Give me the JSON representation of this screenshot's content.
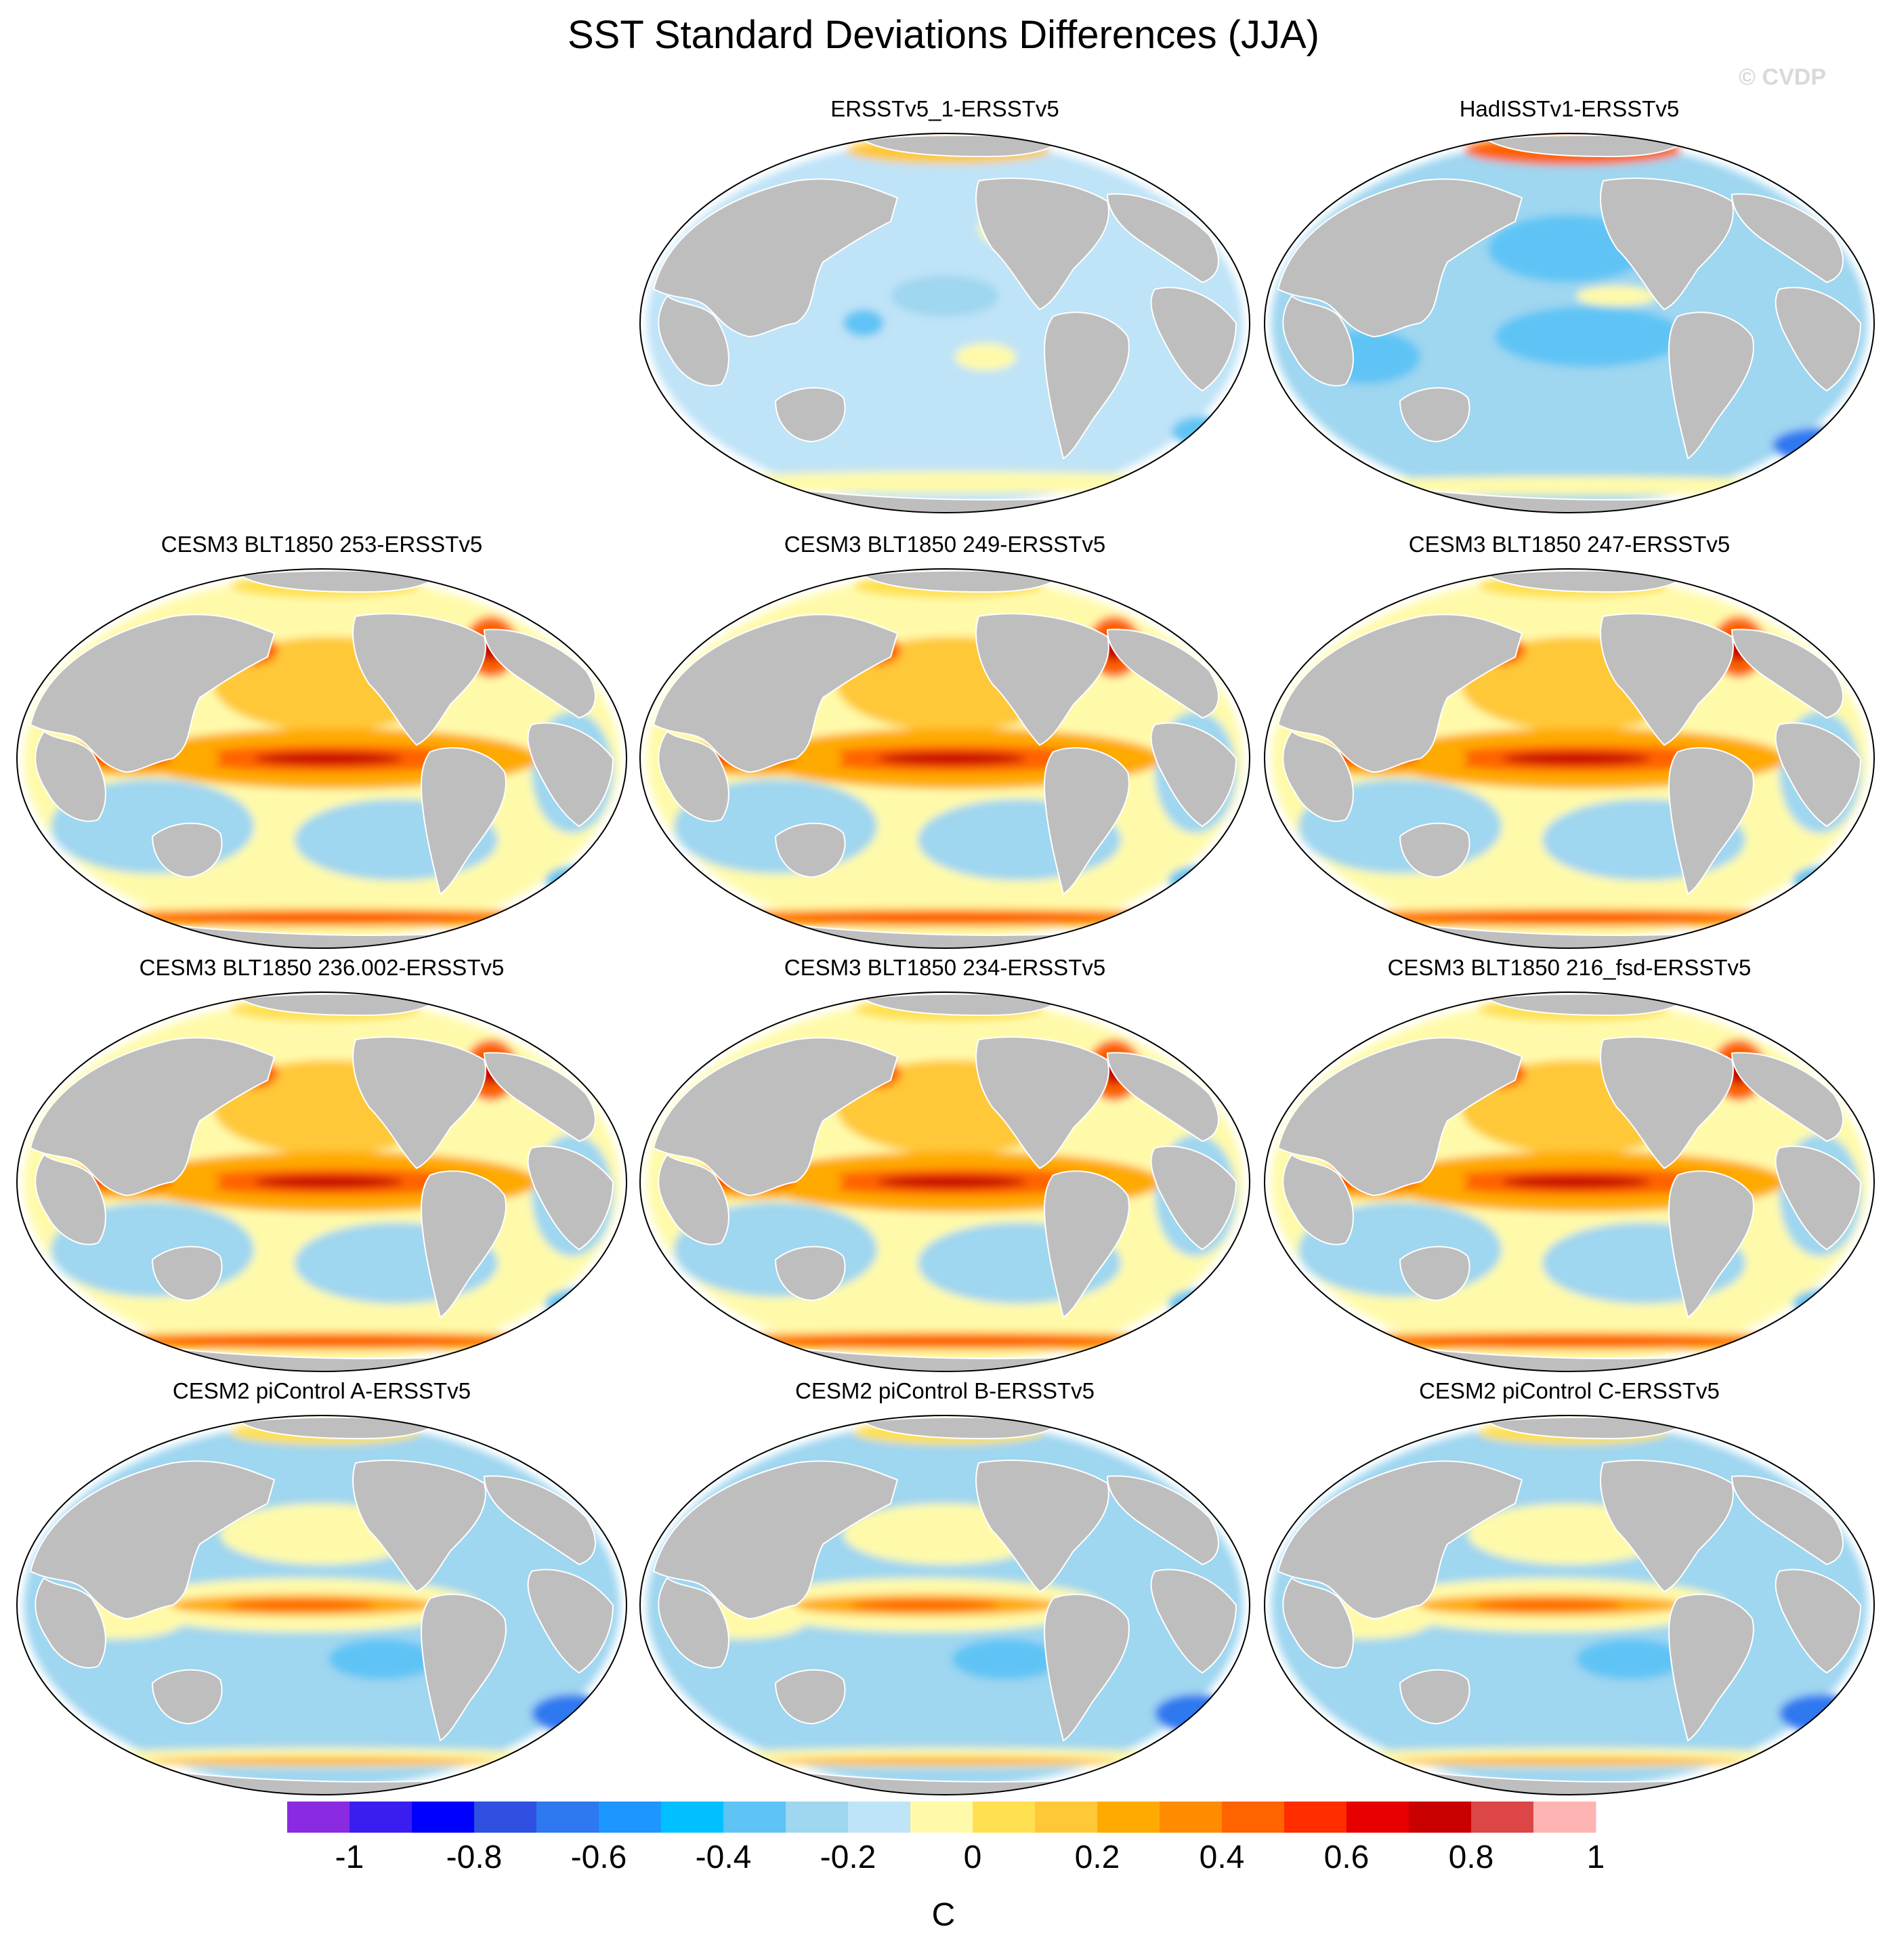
{
  "title": "SST Standard Deviations Differences (JJA)",
  "credit": "© CVDP",
  "panels": [
    {
      "title": "ERSSTv5_1-ERSSTv5",
      "pattern": "obs_weak"
    },
    {
      "title": "HadISSTv1-ERSSTv5",
      "pattern": "obs_neg"
    },
    {
      "title": "CESM3 BLT1850 253-ERSSTv5",
      "pattern": "model_strong"
    },
    {
      "title": "CESM3 BLT1850 249-ERSSTv5",
      "pattern": "model_strong"
    },
    {
      "title": "CESM3 BLT1850 247-ERSSTv5",
      "pattern": "model_strong"
    },
    {
      "title": "CESM3 BLT1850 236.002-ERSSTv5",
      "pattern": "model_strong"
    },
    {
      "title": "CESM3 BLT1850 234-ERSSTv5",
      "pattern": "model_strong"
    },
    {
      "title": "CESM3 BLT1850 216_fsd-ERSSTv5",
      "pattern": "model_strong"
    },
    {
      "title": "CESM2 piControl A-ERSSTv5",
      "pattern": "model_weak"
    },
    {
      "title": "CESM2 piControl B-ERSSTv5",
      "pattern": "model_weak"
    },
    {
      "title": "CESM2 piControl C-ERSSTv5",
      "pattern": "model_weak"
    }
  ],
  "colorbar": {
    "colors": [
      "#8a2be2",
      "#3a1ef0",
      "#0000ff",
      "#2f50e0",
      "#2e78f0",
      "#1e96ff",
      "#00c0ff",
      "#5ec4f5",
      "#9fd6f0",
      "#bfe3f7",
      "#fffaaa",
      "#ffe050",
      "#ffc837",
      "#ffaa00",
      "#ff8c00",
      "#ff6400",
      "#ff2d00",
      "#e60000",
      "#c80000",
      "#dc4646",
      "#ffb4b4"
    ],
    "tick_labels": [
      "-1",
      "-0.8",
      "-0.6",
      "-0.4",
      "-0.2",
      "0",
      "0.2",
      "0.4",
      "0.6",
      "0.8",
      "1"
    ],
    "units": "C"
  },
  "land_color": "#bebebe"
}
